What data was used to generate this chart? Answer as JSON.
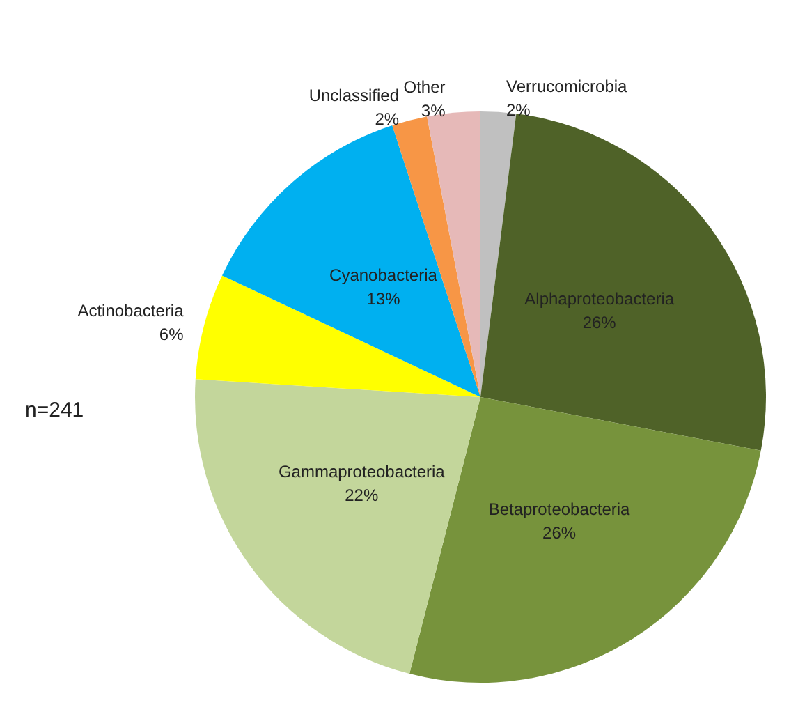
{
  "chart_data": {
    "type": "pie",
    "categories": [
      "Verrucomicrobia",
      "Alphaproteobacteria",
      "Betaproteobacteria",
      "Gammaproteobacteria",
      "Actinobacteria",
      "Cyanobacteria",
      "Unclassified",
      "Other"
    ],
    "values": [
      2,
      26,
      26,
      22,
      6,
      13,
      2,
      3
    ],
    "value_labels": [
      "2%",
      "26%",
      "26%",
      "22%",
      "6%",
      "13%",
      "2%",
      "3%"
    ],
    "colors": [
      "#c0c0c0",
      "#4f6228",
      "#77933c",
      "#c3d69b",
      "#ffff00",
      "#00b0f0",
      "#f79646",
      "#e6b9b8"
    ],
    "annotations": [
      "n=241"
    ],
    "legend": false
  }
}
